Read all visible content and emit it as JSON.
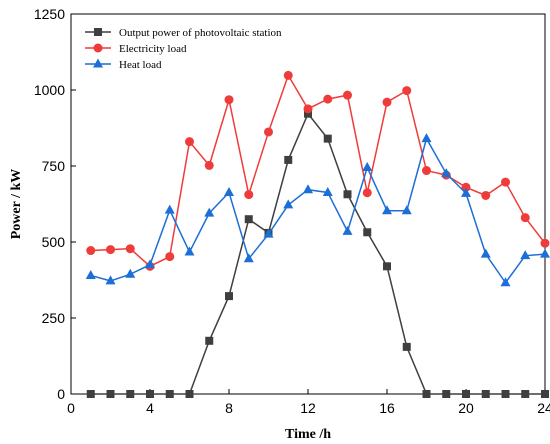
{
  "chart_data": {
    "type": "line",
    "xlabel": "Time /h",
    "ylabel": "Power / kW",
    "xlim": [
      0,
      24
    ],
    "ylim": [
      0,
      1250
    ],
    "xticks": [
      0,
      4,
      8,
      12,
      16,
      20,
      24
    ],
    "yticks": [
      0,
      250,
      500,
      750,
      1000,
      1250
    ],
    "grid": false,
    "legend_position": "top-left",
    "x": [
      1,
      2,
      3,
      4,
      5,
      6,
      7,
      8,
      9,
      10,
      11,
      12,
      13,
      14,
      15,
      16,
      17,
      18,
      19,
      20,
      21,
      22,
      23,
      24
    ],
    "series": [
      {
        "name": "Output power of photovoltaic station",
        "color": "#3f3f3f",
        "marker": "square",
        "values": [
          0,
          0,
          0,
          0,
          0,
          0,
          175,
          322,
          575,
          530,
          770,
          922,
          840,
          657,
          532,
          420,
          155,
          0,
          0,
          0,
          0,
          0,
          0,
          0
        ]
      },
      {
        "name": "Electricity load",
        "color": "#ef3b39",
        "marker": "circle",
        "values": [
          472,
          475,
          478,
          420,
          452,
          830,
          752,
          968,
          656,
          862,
          1048,
          938,
          970,
          983,
          662,
          960,
          998,
          735,
          720,
          680,
          653,
          697,
          580,
          496
        ]
      },
      {
        "name": "Heat load",
        "color": "#1c6fd6",
        "marker": "triangle",
        "values": [
          390,
          372,
          394,
          425,
          605,
          467,
          595,
          663,
          445,
          526,
          622,
          672,
          663,
          535,
          745,
          603,
          603,
          840,
          725,
          660,
          460,
          366,
          455,
          460
        ]
      }
    ]
  }
}
